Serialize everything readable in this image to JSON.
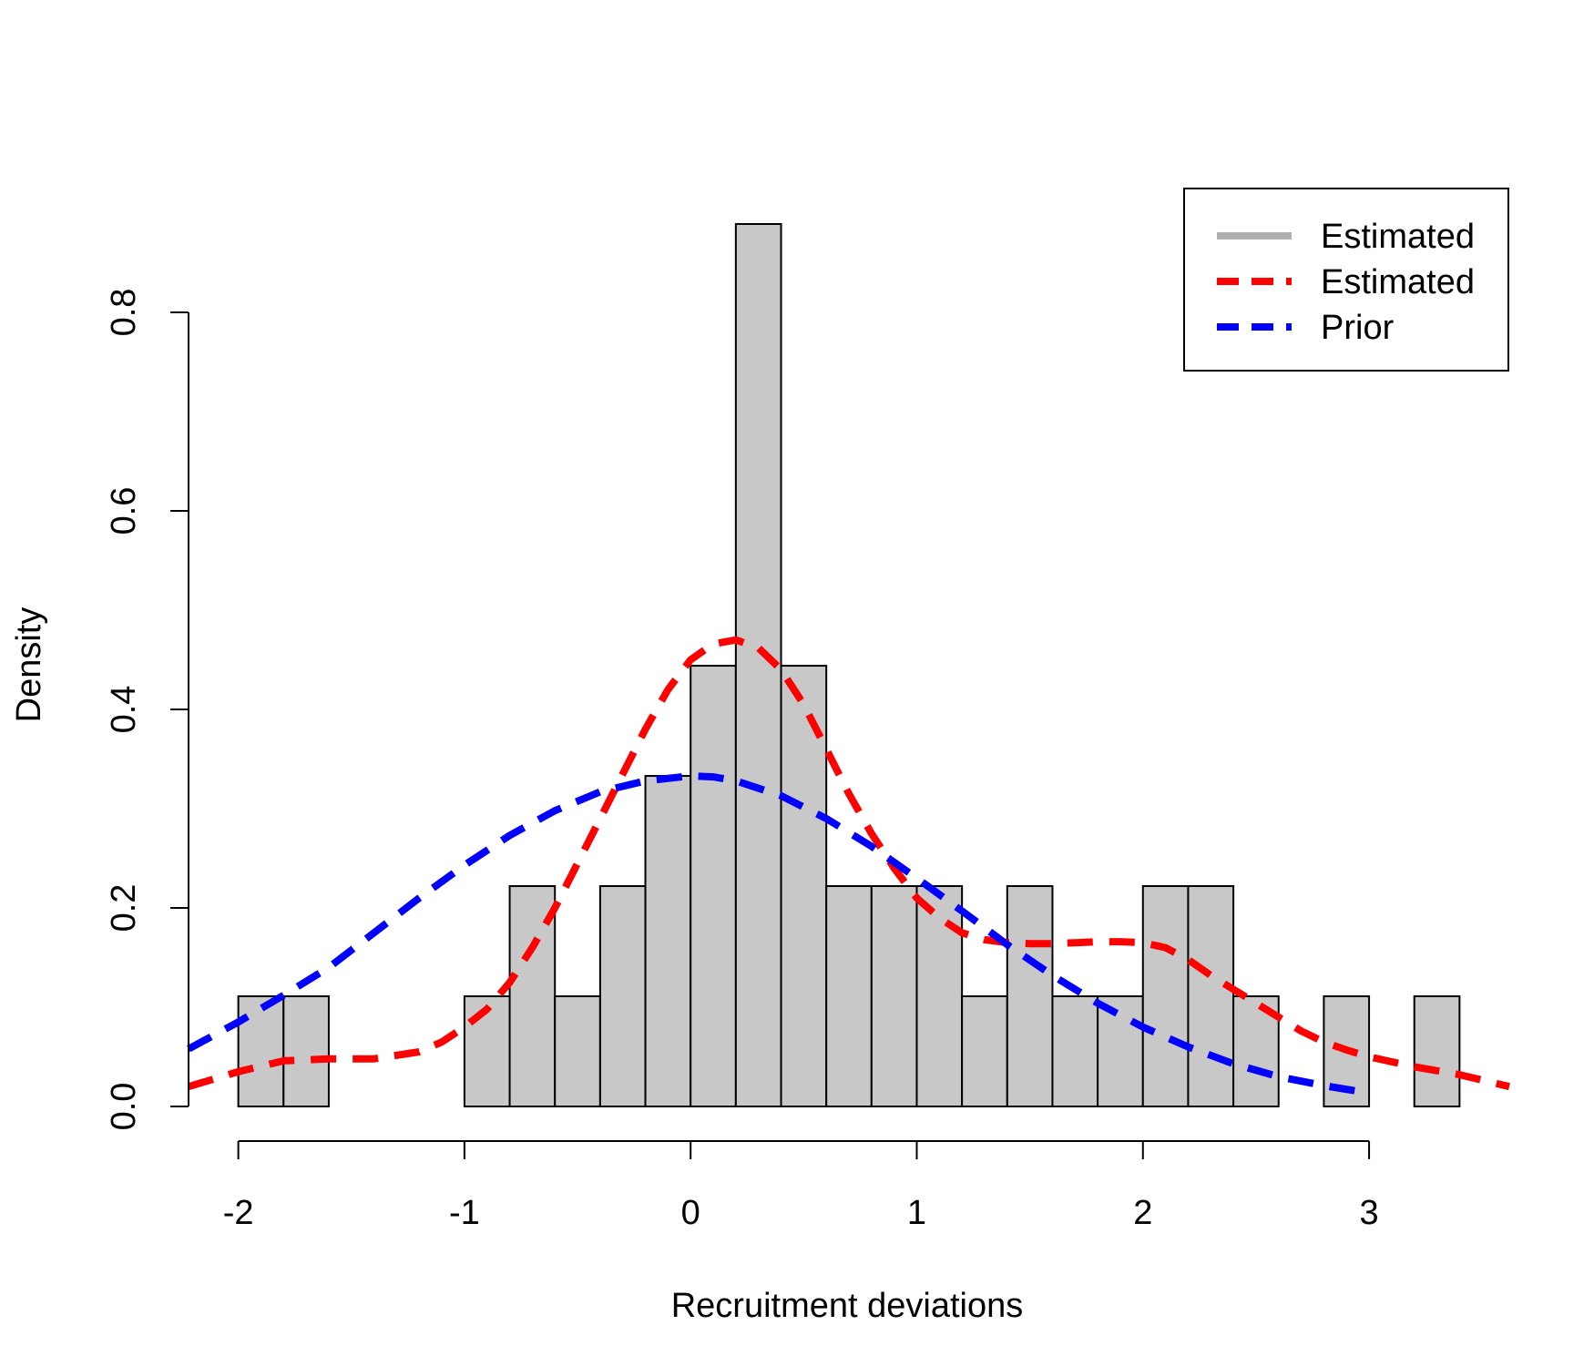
{
  "chart_data": {
    "type": "bar",
    "subtype": "histogram",
    "xlabel": "Recruitment deviations",
    "ylabel": "Density",
    "xlim": [
      -2.22,
      3.62
    ],
    "ylim": [
      0,
      0.9
    ],
    "x_ticks": [
      -2,
      -1,
      0,
      1,
      2,
      3
    ],
    "x_tick_labels": [
      "-2",
      "-1",
      "0",
      "1",
      "2",
      "3"
    ],
    "y_ticks": [
      0.0,
      0.2,
      0.4,
      0.6,
      0.8
    ],
    "y_tick_labels": [
      "0.0",
      "0.2",
      "0.4",
      "0.6",
      "0.8"
    ],
    "bar_fill": "#c8c8c8",
    "bars": [
      {
        "x0": -2.0,
        "x1": -1.8,
        "density": 0.111
      },
      {
        "x0": -1.8,
        "x1": -1.6,
        "density": 0.111
      },
      {
        "x0": -1.6,
        "x1": -1.4,
        "density": 0
      },
      {
        "x0": -1.4,
        "x1": -1.2,
        "density": 0
      },
      {
        "x0": -1.2,
        "x1": -1.0,
        "density": 0
      },
      {
        "x0": -1.0,
        "x1": -0.8,
        "density": 0.111
      },
      {
        "x0": -0.8,
        "x1": -0.6,
        "density": 0.222
      },
      {
        "x0": -0.6,
        "x1": -0.4,
        "density": 0.111
      },
      {
        "x0": -0.4,
        "x1": -0.2,
        "density": 0.222
      },
      {
        "x0": -0.2,
        "x1": 0.0,
        "density": 0.333
      },
      {
        "x0": 0.0,
        "x1": 0.2,
        "density": 0.444
      },
      {
        "x0": 0.2,
        "x1": 0.4,
        "density": 0.889
      },
      {
        "x0": 0.4,
        "x1": 0.6,
        "density": 0.444
      },
      {
        "x0": 0.6,
        "x1": 0.8,
        "density": 0.222
      },
      {
        "x0": 0.8,
        "x1": 1.0,
        "density": 0.222
      },
      {
        "x0": 1.0,
        "x1": 1.2,
        "density": 0.222
      },
      {
        "x0": 1.2,
        "x1": 1.4,
        "density": 0.111
      },
      {
        "x0": 1.4,
        "x1": 1.6,
        "density": 0.222
      },
      {
        "x0": 1.6,
        "x1": 1.8,
        "density": 0.111
      },
      {
        "x0": 1.8,
        "x1": 2.0,
        "density": 0.111
      },
      {
        "x0": 2.0,
        "x1": 2.2,
        "density": 0.222
      },
      {
        "x0": 2.2,
        "x1": 2.4,
        "density": 0.222
      },
      {
        "x0": 2.4,
        "x1": 2.6,
        "density": 0.111
      },
      {
        "x0": 2.6,
        "x1": 2.8,
        "density": 0
      },
      {
        "x0": 2.8,
        "x1": 3.0,
        "density": 0.111
      },
      {
        "x0": 3.0,
        "x1": 3.2,
        "density": 0
      },
      {
        "x0": 3.2,
        "x1": 3.4,
        "density": 0.111
      }
    ],
    "series": [
      {
        "name": "Estimated",
        "color": "#b0b0b0",
        "style": "solid",
        "x": [],
        "y": []
      },
      {
        "name": "Estimated",
        "color": "#ff0000",
        "style": "dashed",
        "x": [
          -2.22,
          -2.0,
          -1.8,
          -1.6,
          -1.4,
          -1.2,
          -1.1,
          -1.0,
          -0.9,
          -0.8,
          -0.7,
          -0.6,
          -0.5,
          -0.4,
          -0.3,
          -0.2,
          -0.1,
          0.0,
          0.1,
          0.2,
          0.3,
          0.4,
          0.5,
          0.6,
          0.7,
          0.8,
          0.9,
          1.0,
          1.1,
          1.2,
          1.3,
          1.4,
          1.5,
          1.6,
          1.7,
          1.8,
          1.9,
          2.0,
          2.1,
          2.2,
          2.3,
          2.4,
          2.5,
          2.6,
          2.7,
          2.8,
          2.9,
          3.0,
          3.2,
          3.4,
          3.62
        ],
        "y": [
          0.02,
          0.035,
          0.046,
          0.048,
          0.048,
          0.055,
          0.065,
          0.08,
          0.098,
          0.125,
          0.16,
          0.2,
          0.245,
          0.29,
          0.335,
          0.38,
          0.42,
          0.45,
          0.466,
          0.47,
          0.462,
          0.44,
          0.405,
          0.36,
          0.315,
          0.275,
          0.24,
          0.21,
          0.19,
          0.175,
          0.168,
          0.165,
          0.164,
          0.164,
          0.165,
          0.166,
          0.166,
          0.165,
          0.16,
          0.148,
          0.132,
          0.118,
          0.104,
          0.09,
          0.076,
          0.065,
          0.057,
          0.05,
          0.04,
          0.032,
          0.02
        ]
      },
      {
        "name": "Prior",
        "color": "#0000ff",
        "style": "dashed",
        "x": [
          -2.22,
          -2.0,
          -1.8,
          -1.6,
          -1.4,
          -1.2,
          -1.0,
          -0.8,
          -0.6,
          -0.4,
          -0.2,
          0.0,
          0.1,
          0.2,
          0.4,
          0.6,
          0.8,
          1.0,
          1.2,
          1.4,
          1.6,
          1.8,
          2.0,
          2.2,
          2.4,
          2.6,
          2.8,
          2.96
        ],
        "y": [
          0.058,
          0.085,
          0.112,
          0.14,
          0.175,
          0.21,
          0.243,
          0.273,
          0.298,
          0.317,
          0.328,
          0.333,
          0.332,
          0.328,
          0.313,
          0.29,
          0.262,
          0.23,
          0.197,
          0.163,
          0.132,
          0.104,
          0.08,
          0.06,
          0.043,
          0.03,
          0.021,
          0.015
        ]
      }
    ],
    "legend": {
      "position": "top-right",
      "entries": [
        "Estimated",
        "Estimated",
        "Prior"
      ]
    }
  }
}
